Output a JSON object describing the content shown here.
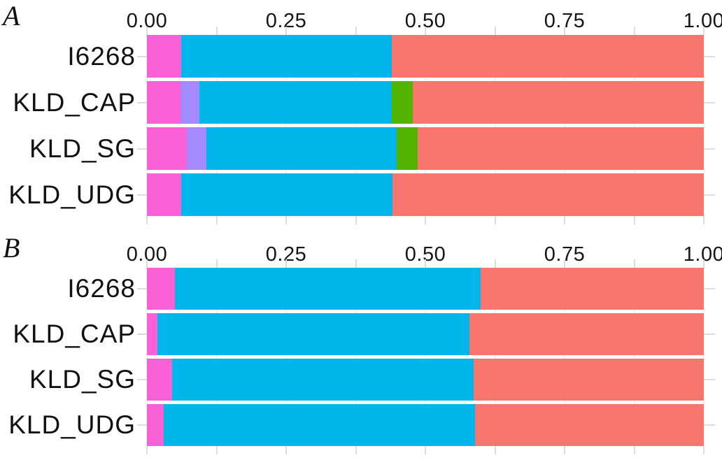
{
  "figure_title": "",
  "colors": {
    "pink": "#FB61D7",
    "purple": "#A58AFF",
    "blue": "#00B6EB",
    "green": "#53B400",
    "salmon": "#F8766D",
    "tick": "#DCDCDC",
    "grid": "#F1F1F1",
    "text": "#111111"
  },
  "axis": {
    "range": [
      0,
      1
    ],
    "tick_labels": [
      "0.00",
      "0.25",
      "0.50",
      "0.75",
      "1.00"
    ],
    "tick_values": [
      0,
      0.25,
      0.5,
      0.75,
      1
    ],
    "minor_step": 0.125
  },
  "panels": [
    {
      "label": "A",
      "rows": [
        {
          "label": "I6268",
          "segments": [
            {
              "key": "pink",
              "value": 0.062
            },
            {
              "key": "blue",
              "value": 0.378
            },
            {
              "key": "salmon",
              "value": 0.56
            }
          ]
        },
        {
          "label": "KLD_CAP",
          "segments": [
            {
              "key": "pink",
              "value": 0.06
            },
            {
              "key": "purple",
              "value": 0.034
            },
            {
              "key": "blue",
              "value": 0.346
            },
            {
              "key": "green",
              "value": 0.037
            },
            {
              "key": "salmon",
              "value": 0.523
            }
          ]
        },
        {
          "label": "KLD_SG",
          "segments": [
            {
              "key": "pink",
              "value": 0.071
            },
            {
              "key": "purple",
              "value": 0.036
            },
            {
              "key": "blue",
              "value": 0.342
            },
            {
              "key": "green",
              "value": 0.037
            },
            {
              "key": "salmon",
              "value": 0.514
            }
          ]
        },
        {
          "label": "KLD_UDG",
          "segments": [
            {
              "key": "pink",
              "value": 0.062
            },
            {
              "key": "blue",
              "value": 0.379
            },
            {
              "key": "salmon",
              "value": 0.559
            }
          ]
        }
      ]
    },
    {
      "label": "B",
      "rows": [
        {
          "label": "I6268",
          "segments": [
            {
              "key": "pink",
              "value": 0.05
            },
            {
              "key": "blue",
              "value": 0.549
            },
            {
              "key": "salmon",
              "value": 0.401
            }
          ]
        },
        {
          "label": "KLD_CAP",
          "segments": [
            {
              "key": "pink",
              "value": 0.019
            },
            {
              "key": "blue",
              "value": 0.56
            },
            {
              "key": "salmon",
              "value": 0.421
            }
          ]
        },
        {
          "label": "KLD_SG",
          "segments": [
            {
              "key": "pink",
              "value": 0.045
            },
            {
              "key": "blue",
              "value": 0.542
            },
            {
              "key": "salmon",
              "value": 0.413
            }
          ]
        },
        {
          "label": "KLD_UDG",
          "segments": [
            {
              "key": "pink",
              "value": 0.03
            },
            {
              "key": "blue",
              "value": 0.559
            },
            {
              "key": "salmon",
              "value": 0.411
            }
          ]
        }
      ]
    }
  ],
  "chart_data": [
    {
      "type": "bar",
      "orientation": "horizontal",
      "stacked": true,
      "title": "A",
      "categories": [
        "I6268",
        "KLD_CAP",
        "KLD_SG",
        "KLD_UDG"
      ],
      "series": [
        {
          "name": "component-pink",
          "color": "#FB61D7",
          "values": [
            0.062,
            0.06,
            0.071,
            0.062
          ]
        },
        {
          "name": "component-purple",
          "color": "#A58AFF",
          "values": [
            0.0,
            0.034,
            0.036,
            0.0
          ]
        },
        {
          "name": "component-blue",
          "color": "#00B6EB",
          "values": [
            0.378,
            0.346,
            0.342,
            0.379
          ]
        },
        {
          "name": "component-green",
          "color": "#53B400",
          "values": [
            0.0,
            0.037,
            0.037,
            0.0
          ]
        },
        {
          "name": "component-salmon",
          "color": "#F8766D",
          "values": [
            0.56,
            0.523,
            0.514,
            0.559
          ]
        }
      ],
      "xlabel": "",
      "ylabel": "",
      "xlim": [
        0,
        1
      ],
      "x_ticks": [
        0,
        0.25,
        0.5,
        0.75,
        1
      ],
      "x_tick_labels": [
        "0.00",
        "0.25",
        "0.50",
        "0.75",
        "1.00"
      ],
      "minor_tick_step": 0.125,
      "grid": "faint vertical gridlines every 0.125",
      "legend_position": "none"
    },
    {
      "type": "bar",
      "orientation": "horizontal",
      "stacked": true,
      "title": "B",
      "categories": [
        "I6268",
        "KLD_CAP",
        "KLD_SG",
        "KLD_UDG"
      ],
      "series": [
        {
          "name": "component-pink",
          "color": "#FB61D7",
          "values": [
            0.05,
            0.019,
            0.045,
            0.03
          ]
        },
        {
          "name": "component-blue",
          "color": "#00B6EB",
          "values": [
            0.549,
            0.56,
            0.542,
            0.559
          ]
        },
        {
          "name": "component-salmon",
          "color": "#F8766D",
          "values": [
            0.401,
            0.421,
            0.413,
            0.411
          ]
        }
      ],
      "xlabel": "",
      "ylabel": "",
      "xlim": [
        0,
        1
      ],
      "x_ticks": [
        0,
        0.25,
        0.5,
        0.75,
        1
      ],
      "x_tick_labels": [
        "0.00",
        "0.25",
        "0.50",
        "0.75",
        "1.00"
      ],
      "minor_tick_step": 0.125,
      "grid": "faint vertical gridlines every 0.125",
      "legend_position": "none"
    }
  ]
}
